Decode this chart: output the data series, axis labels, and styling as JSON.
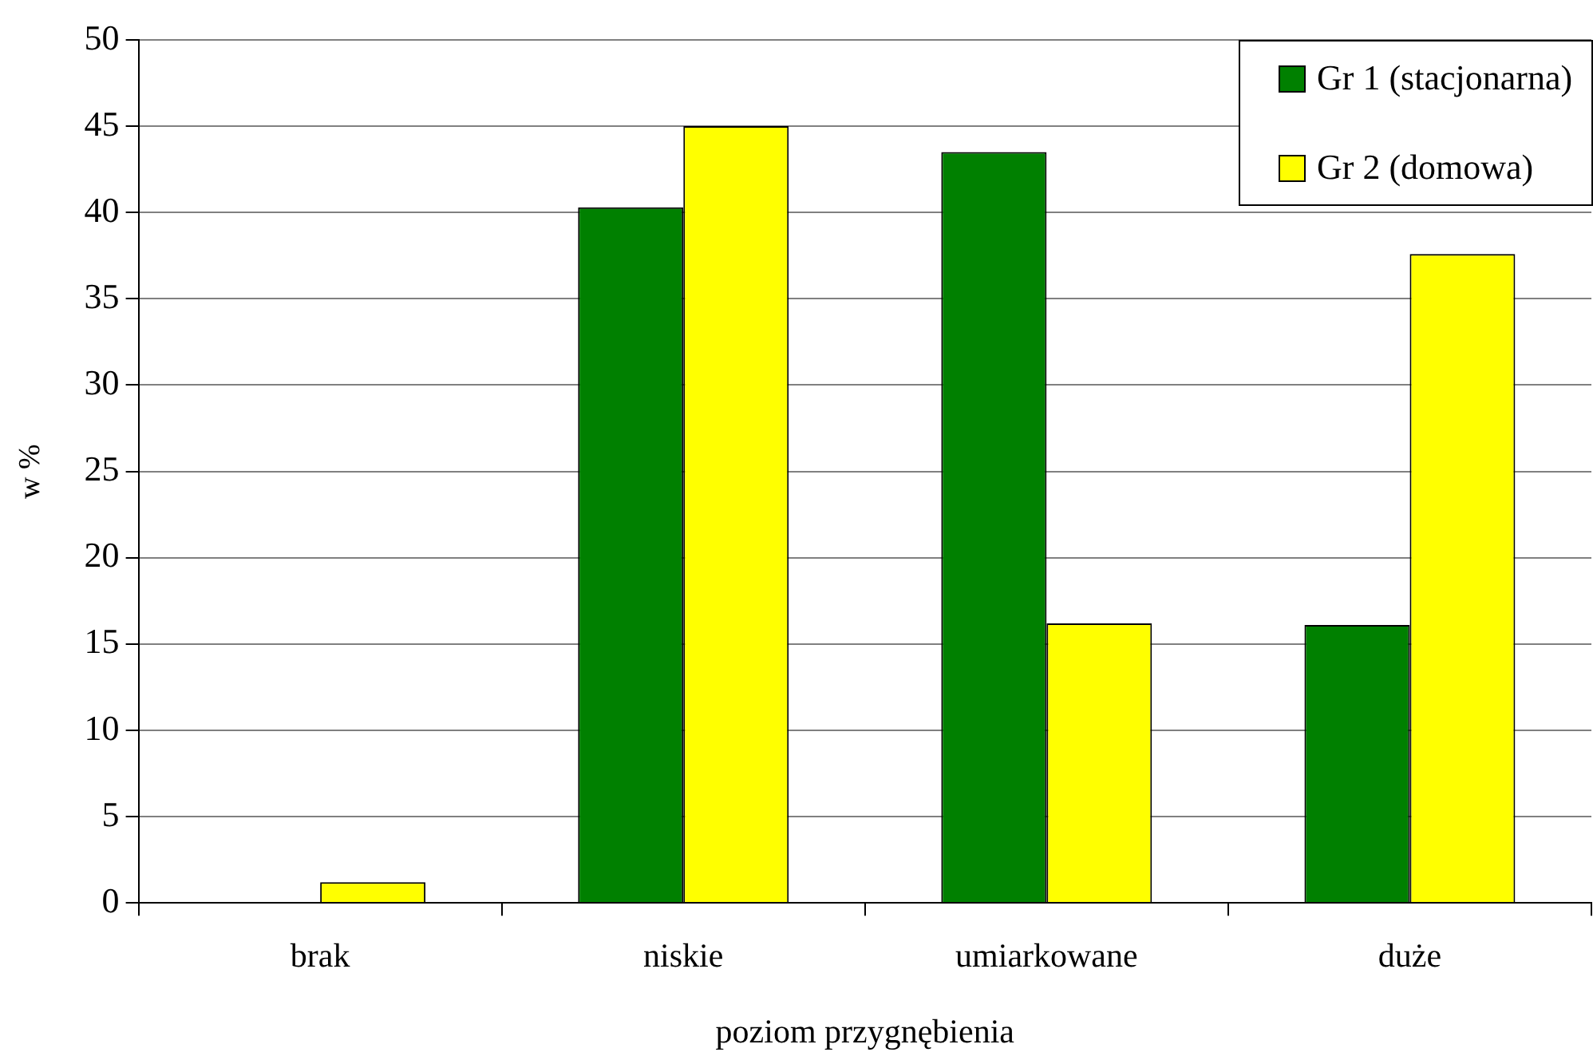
{
  "chart_data": {
    "type": "bar",
    "xlabel": "poziom przygnębienia",
    "ylabel": "w %",
    "categories": [
      "brak",
      "niskie",
      "umiarkowane",
      "duże"
    ],
    "series": [
      {
        "name": "Gr 1 (stacjonarna)",
        "color": "#008000",
        "values": [
          0,
          40.3,
          43.5,
          16.1
        ]
      },
      {
        "name": "Gr 2 (domowa)",
        "color": "#ffff00",
        "values": [
          1.2,
          45,
          16.2,
          37.6
        ]
      }
    ],
    "ylim": [
      0,
      50
    ],
    "yticks": [
      0,
      5,
      10,
      15,
      20,
      25,
      30,
      35,
      40,
      45,
      50
    ],
    "grid": "y",
    "legend": "top right"
  }
}
